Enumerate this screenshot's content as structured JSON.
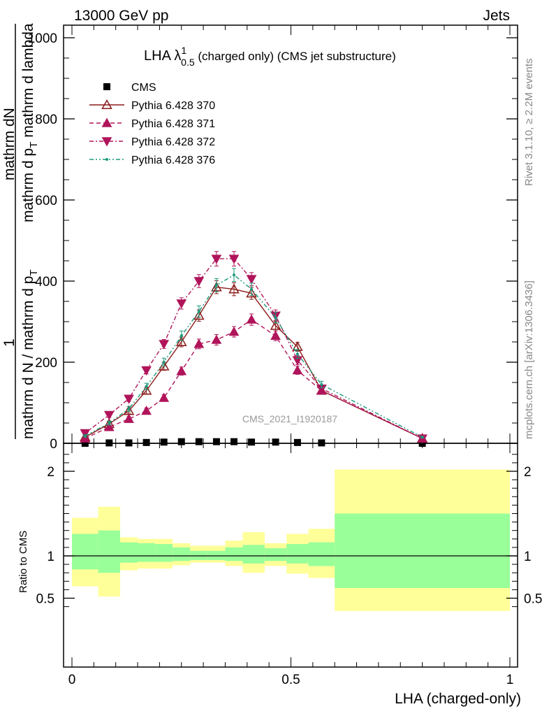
{
  "header": {
    "left": "13000 GeV pp",
    "right": "Jets"
  },
  "side_text": {
    "rivet": "Rivet 3.1.10, ≥ 2.2M events",
    "mcplots": "mcplots.cern.ch [arXiv:1306.3436]"
  },
  "watermark": "CMS_2021_I1920187",
  "chart_data": [
    {
      "type": "line",
      "title_main": "LHA λ",
      "title_sup": "1",
      "title_sub": "0.5",
      "title_rest": " (charged only) (CMS jet substructure)",
      "ylabel_top": "1",
      "ylabel_num": "mathrm dN",
      "ylabel_left": "mathrm d N / mathrm d p",
      "ylabel_left_sub": "T",
      "ylabel_right": "mathrm d p",
      "ylabel_right_sub": "T",
      "ylabel_right_rest": " mathrm d lambda",
      "ylim": [
        0,
        1000
      ],
      "yticks": [
        0,
        200,
        400,
        600,
        800,
        "1000"
      ],
      "xlim": [
        0,
        1
      ],
      "x": [
        0.03,
        0.085,
        0.13,
        0.17,
        0.21,
        0.25,
        0.29,
        0.33,
        0.37,
        0.41,
        0.465,
        0.515,
        0.57,
        0.8
      ],
      "series": [
        {
          "name": "CMS",
          "color": "#000000",
          "marker": "square",
          "line": "none",
          "values": [
            0,
            1,
            1,
            2,
            3,
            4,
            4,
            4,
            4,
            3,
            3,
            2,
            1,
            0
          ]
        },
        {
          "name": "Pythia 6.428 370",
          "color": "#8b1a1a",
          "marker": "triangle-up-open",
          "line": "solid",
          "values": [
            15,
            48,
            80,
            130,
            190,
            250,
            315,
            385,
            380,
            370,
            290,
            238,
            130,
            12
          ],
          "errors": [
            3,
            5,
            6,
            8,
            10,
            12,
            14,
            16,
            16,
            15,
            13,
            11,
            8,
            2
          ]
        },
        {
          "name": "Pythia 6.428 371",
          "color": "#b0145a",
          "marker": "triangle-up",
          "line": "dashed",
          "values": [
            12,
            40,
            60,
            80,
            112,
            178,
            245,
            255,
            275,
            305,
            265,
            180,
            130,
            12
          ],
          "errors": [
            3,
            5,
            6,
            7,
            8,
            10,
            12,
            13,
            13,
            14,
            12,
            10,
            8,
            2
          ]
        },
        {
          "name": "Pythia 6.428 372",
          "color": "#b0145a",
          "marker": "triangle-down",
          "line": "dashdot",
          "values": [
            25,
            70,
            110,
            180,
            245,
            345,
            400,
            455,
            455,
            405,
            315,
            205,
            135,
            12
          ],
          "errors": [
            4,
            6,
            7,
            9,
            11,
            14,
            16,
            18,
            18,
            16,
            14,
            11,
            8,
            2
          ]
        },
        {
          "name": "Pythia 6.428 376",
          "color": "#1a9a7a",
          "marker": "dot",
          "line": "dashdotdot",
          "values": [
            18,
            50,
            85,
            140,
            200,
            265,
            325,
            390,
            415,
            380,
            310,
            220,
            145,
            15
          ],
          "errors": [
            3,
            5,
            6,
            8,
            10,
            12,
            14,
            16,
            16,
            15,
            13,
            11,
            8,
            2
          ]
        }
      ],
      "legend_position": "top-left"
    },
    {
      "type": "area",
      "ylabel": "Ratio to CMS",
      "xlabel": "LHA (charged-only)",
      "ylim": [
        0.35,
        2.25
      ],
      "yticks": [
        "0.5",
        "1",
        "2"
      ],
      "xticks": [
        "0",
        "0.5",
        "1"
      ],
      "xlim": [
        0,
        1
      ],
      "reference": 1,
      "bins": [
        {
          "x0": 0.0,
          "x1": 0.06,
          "inner": [
            0.84,
            1.26
          ],
          "outer": [
            0.64,
            1.45
          ]
        },
        {
          "x0": 0.06,
          "x1": 0.11,
          "inner": [
            0.8,
            1.3
          ],
          "outer": [
            0.52,
            1.58
          ]
        },
        {
          "x0": 0.11,
          "x1": 0.15,
          "inner": [
            0.92,
            1.16
          ],
          "outer": [
            0.83,
            1.22
          ]
        },
        {
          "x0": 0.15,
          "x1": 0.19,
          "inner": [
            0.93,
            1.15
          ],
          "outer": [
            0.85,
            1.2
          ]
        },
        {
          "x0": 0.19,
          "x1": 0.23,
          "inner": [
            0.93,
            1.14
          ],
          "outer": [
            0.85,
            1.2
          ]
        },
        {
          "x0": 0.23,
          "x1": 0.27,
          "inner": [
            0.94,
            1.1
          ],
          "outer": [
            0.89,
            1.15
          ]
        },
        {
          "x0": 0.27,
          "x1": 0.31,
          "inner": [
            0.95,
            1.06
          ],
          "outer": [
            0.92,
            1.12
          ]
        },
        {
          "x0": 0.31,
          "x1": 0.35,
          "inner": [
            0.95,
            1.06
          ],
          "outer": [
            0.92,
            1.12
          ]
        },
        {
          "x0": 0.35,
          "x1": 0.39,
          "inner": [
            0.94,
            1.1
          ],
          "outer": [
            0.88,
            1.18
          ]
        },
        {
          "x0": 0.39,
          "x1": 0.44,
          "inner": [
            0.91,
            1.13
          ],
          "outer": [
            0.8,
            1.28
          ]
        },
        {
          "x0": 0.44,
          "x1": 0.49,
          "inner": [
            0.94,
            1.09
          ],
          "outer": [
            0.88,
            1.15
          ]
        },
        {
          "x0": 0.49,
          "x1": 0.54,
          "inner": [
            0.91,
            1.14
          ],
          "outer": [
            0.79,
            1.26
          ]
        },
        {
          "x0": 0.54,
          "x1": 0.6,
          "inner": [
            0.88,
            1.16
          ],
          "outer": [
            0.74,
            1.32
          ]
        },
        {
          "x0": 0.6,
          "x1": 1.0,
          "inner": [
            0.62,
            1.5
          ],
          "outer": [
            0.35,
            2.02
          ]
        }
      ],
      "colors": {
        "inner": "#99ff99",
        "outer": "#ffff99"
      }
    }
  ]
}
